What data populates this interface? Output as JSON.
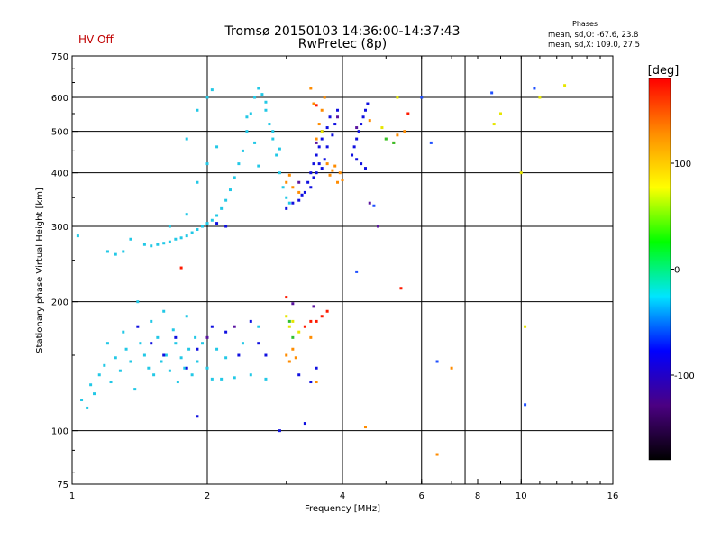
{
  "header": {
    "title_line1": "Tromsø 20150103 14:36:00-14:37:43",
    "title_line2": "RwPretec (8p)",
    "status": "HV Off"
  },
  "phases": {
    "heading": "Phases",
    "line_o": "mean, sd,O: -67.6, 23.8",
    "line_x": "mean, sd,X: 109.0, 27.5"
  },
  "chart_data": {
    "type": "scatter",
    "xlabel": "Frequency [MHz]",
    "ylabel": "Stationary phase Virtual Height [km]",
    "x_scale": "log",
    "y_scale": "log",
    "xlim": [
      1,
      16
    ],
    "ylim": [
      75,
      750
    ],
    "x_ticks": [
      1,
      2,
      4,
      6,
      8,
      10,
      16
    ],
    "x_tick_labels": [
      "1",
      "2",
      "4",
      "6",
      "8",
      "10",
      "16"
    ],
    "x_gridlines": [
      2,
      4,
      6,
      7.5,
      10
    ],
    "y_ticks": [
      75,
      100,
      200,
      300,
      400,
      500,
      600,
      750
    ],
    "y_tick_labels": [
      "75",
      "100",
      "200",
      "300",
      "400",
      "500",
      "600",
      "750"
    ],
    "y_gridlines": [
      100,
      200,
      300,
      400,
      500,
      600
    ],
    "grid": true,
    "colorbar": {
      "label": "[deg]",
      "ticks": [
        100,
        0,
        -100
      ],
      "tick_labels": [
        "100",
        "0",
        "-100"
      ],
      "range": [
        -180,
        180
      ],
      "colors": [
        "#000000",
        "#4b0082",
        "#0000ff",
        "#00e5ff",
        "#00ff00",
        "#ffff00",
        "#ff8c00",
        "#ff0000"
      ]
    },
    "series": [
      {
        "color_group": "cyan",
        "color": "#22c8e6",
        "points": [
          [
            1.05,
            118
          ],
          [
            1.08,
            113
          ],
          [
            1.1,
            128
          ],
          [
            1.12,
            122
          ],
          [
            1.15,
            135
          ],
          [
            1.18,
            142
          ],
          [
            1.2,
            160
          ],
          [
            1.22,
            130
          ],
          [
            1.25,
            148
          ],
          [
            1.28,
            138
          ],
          [
            1.3,
            170
          ],
          [
            1.32,
            155
          ],
          [
            1.35,
            145
          ],
          [
            1.38,
            125
          ],
          [
            1.4,
            200
          ],
          [
            1.42,
            160
          ],
          [
            1.45,
            150
          ],
          [
            1.48,
            140
          ],
          [
            1.5,
            180
          ],
          [
            1.52,
            135
          ],
          [
            1.55,
            165
          ],
          [
            1.58,
            145
          ],
          [
            1.6,
            190
          ],
          [
            1.62,
            150
          ],
          [
            1.65,
            138
          ],
          [
            1.68,
            172
          ],
          [
            1.7,
            160
          ],
          [
            1.72,
            130
          ],
          [
            1.75,
            148
          ],
          [
            1.78,
            140
          ],
          [
            1.8,
            185
          ],
          [
            1.82,
            155
          ],
          [
            1.85,
            135
          ],
          [
            1.88,
            165
          ],
          [
            1.9,
            145
          ],
          [
            1.95,
            160
          ],
          [
            2.0,
            140
          ],
          [
            2.05,
            132
          ],
          [
            2.1,
            155
          ],
          [
            2.15,
            132
          ],
          [
            2.2,
            148
          ],
          [
            2.3,
            133
          ],
          [
            2.4,
            160
          ],
          [
            2.5,
            135
          ],
          [
            2.6,
            175
          ],
          [
            2.7,
            132
          ],
          [
            1.45,
            272
          ],
          [
            1.5,
            270
          ],
          [
            1.55,
            272
          ],
          [
            1.6,
            274
          ],
          [
            1.65,
            276
          ],
          [
            1.7,
            280
          ],
          [
            1.75,
            282
          ],
          [
            1.8,
            285
          ],
          [
            1.85,
            290
          ],
          [
            1.9,
            295
          ],
          [
            1.95,
            300
          ],
          [
            2.0,
            305
          ],
          [
            2.05,
            310
          ],
          [
            2.1,
            318
          ],
          [
            2.15,
            330
          ],
          [
            2.2,
            345
          ],
          [
            2.25,
            365
          ],
          [
            2.3,
            390
          ],
          [
            2.35,
            420
          ],
          [
            2.4,
            450
          ],
          [
            2.45,
            500
          ],
          [
            2.5,
            550
          ],
          [
            2.55,
            600
          ],
          [
            2.6,
            630
          ],
          [
            2.65,
            610
          ],
          [
            2.7,
            560
          ],
          [
            2.75,
            520
          ],
          [
            2.8,
            480
          ],
          [
            2.85,
            440
          ],
          [
            2.9,
            400
          ],
          [
            2.95,
            370
          ],
          [
            3.0,
            350
          ],
          [
            3.05,
            340
          ],
          [
            1.3,
            262
          ],
          [
            1.25,
            258
          ],
          [
            1.2,
            262
          ],
          [
            1.35,
            280
          ],
          [
            1.03,
            285
          ],
          [
            1.65,
            300
          ],
          [
            1.8,
            320
          ],
          [
            1.9,
            380
          ],
          [
            2.0,
            420
          ],
          [
            2.1,
            460
          ],
          [
            2.0,
            600
          ],
          [
            2.05,
            625
          ],
          [
            1.9,
            560
          ],
          [
            1.8,
            480
          ],
          [
            2.6,
            415
          ],
          [
            2.55,
            470
          ],
          [
            2.45,
            540
          ],
          [
            2.7,
            585
          ],
          [
            2.8,
            500
          ],
          [
            2.9,
            455
          ]
        ]
      },
      {
        "color_group": "blue",
        "color": "#1010e0",
        "points": [
          [
            1.4,
            175
          ],
          [
            1.5,
            160
          ],
          [
            1.6,
            150
          ],
          [
            1.7,
            165
          ],
          [
            1.8,
            140
          ],
          [
            1.9,
            155
          ],
          [
            2.05,
            175
          ],
          [
            2.2,
            170
          ],
          [
            2.35,
            150
          ],
          [
            2.5,
            180
          ],
          [
            2.6,
            160
          ],
          [
            2.7,
            150
          ],
          [
            3.3,
            360
          ],
          [
            3.35,
            380
          ],
          [
            3.4,
            400
          ],
          [
            3.45,
            420
          ],
          [
            3.5,
            440
          ],
          [
            3.55,
            460
          ],
          [
            3.6,
            480
          ],
          [
            3.7,
            510
          ],
          [
            3.75,
            540
          ],
          [
            3.5,
            400
          ],
          [
            3.55,
            420
          ],
          [
            3.4,
            370
          ],
          [
            3.45,
            390
          ],
          [
            3.6,
            410
          ],
          [
            3.65,
            430
          ],
          [
            3.7,
            460
          ],
          [
            3.8,
            490
          ],
          [
            3.85,
            520
          ],
          [
            3.9,
            560
          ],
          [
            4.2,
            440
          ],
          [
            4.25,
            460
          ],
          [
            4.3,
            480
          ],
          [
            4.35,
            500
          ],
          [
            4.4,
            520
          ],
          [
            4.45,
            540
          ],
          [
            4.5,
            560
          ],
          [
            4.55,
            580
          ],
          [
            4.3,
            430
          ],
          [
            4.4,
            420
          ],
          [
            4.5,
            410
          ],
          [
            3.2,
            345
          ],
          [
            3.25,
            355
          ],
          [
            3.1,
            340
          ],
          [
            3.0,
            330
          ],
          [
            2.1,
            305
          ],
          [
            2.2,
            300
          ],
          [
            3.2,
            135
          ],
          [
            3.4,
            130
          ],
          [
            3.5,
            140
          ],
          [
            2.9,
            100
          ],
          [
            3.3,
            104
          ],
          [
            1.9,
            108
          ]
        ]
      },
      {
        "color_group": "purple",
        "color": "#5a14a0",
        "points": [
          [
            3.2,
            380
          ],
          [
            3.5,
            470
          ],
          [
            3.6,
            500
          ],
          [
            4.3,
            510
          ],
          [
            3.9,
            540
          ],
          [
            2.3,
            175
          ],
          [
            2.0,
            165
          ],
          [
            3.1,
            198
          ],
          [
            3.45,
            195
          ],
          [
            4.8,
            300
          ],
          [
            4.6,
            340
          ]
        ]
      },
      {
        "color_group": "orange",
        "color": "#ff8c00",
        "points": [
          [
            3.0,
            380
          ],
          [
            3.05,
            395
          ],
          [
            3.1,
            370
          ],
          [
            3.2,
            360
          ],
          [
            3.5,
            480
          ],
          [
            3.55,
            520
          ],
          [
            3.6,
            560
          ],
          [
            3.65,
            600
          ],
          [
            3.45,
            580
          ],
          [
            3.4,
            630
          ],
          [
            3.7,
            420
          ],
          [
            3.75,
            395
          ],
          [
            3.8,
            405
          ],
          [
            3.85,
            415
          ],
          [
            3.9,
            380
          ],
          [
            3.95,
            400
          ],
          [
            4.0,
            385
          ],
          [
            4.6,
            530
          ],
          [
            5.2,
            470
          ],
          [
            5.3,
            490
          ],
          [
            3.0,
            150
          ],
          [
            3.05,
            145
          ],
          [
            3.1,
            155
          ],
          [
            3.15,
            148
          ],
          [
            3.5,
            130
          ],
          [
            3.4,
            165
          ],
          [
            4.5,
            102
          ],
          [
            5.5,
            500
          ],
          [
            7.0,
            140
          ],
          [
            6.5,
            88
          ]
        ]
      },
      {
        "color_group": "yellow",
        "color": "#e6e600",
        "points": [
          [
            3.05,
            175
          ],
          [
            3.1,
            180
          ],
          [
            3.0,
            185
          ],
          [
            3.2,
            170
          ],
          [
            4.9,
            510
          ],
          [
            5.0,
            480
          ],
          [
            5.3,
            600
          ],
          [
            9.0,
            550
          ],
          [
            8.7,
            520
          ],
          [
            10.0,
            400
          ],
          [
            10.2,
            175
          ],
          [
            11.0,
            600
          ],
          [
            12.5,
            640
          ],
          [
            3.6,
            500
          ]
        ]
      },
      {
        "color_group": "red",
        "color": "#ff1a00",
        "points": [
          [
            3.4,
            180
          ],
          [
            3.5,
            180
          ],
          [
            3.6,
            185
          ],
          [
            3.3,
            175
          ],
          [
            3.7,
            190
          ],
          [
            1.75,
            240
          ],
          [
            3.0,
            205
          ],
          [
            5.4,
            215
          ],
          [
            5.6,
            550
          ],
          [
            3.5,
            575
          ]
        ]
      },
      {
        "color_group": "green",
        "color": "#30c030",
        "points": [
          [
            3.05,
            180
          ],
          [
            3.1,
            165
          ],
          [
            5.0,
            480
          ],
          [
            5.2,
            470
          ]
        ]
      },
      {
        "color_group": "mixed",
        "color": "#2050ff",
        "points": [
          [
            6.0,
            600
          ],
          [
            6.3,
            470
          ],
          [
            8.6,
            615
          ],
          [
            10.7,
            630
          ],
          [
            4.7,
            335
          ],
          [
            4.3,
            235
          ],
          [
            6.5,
            145
          ],
          [
            10.2,
            115
          ]
        ]
      }
    ]
  }
}
